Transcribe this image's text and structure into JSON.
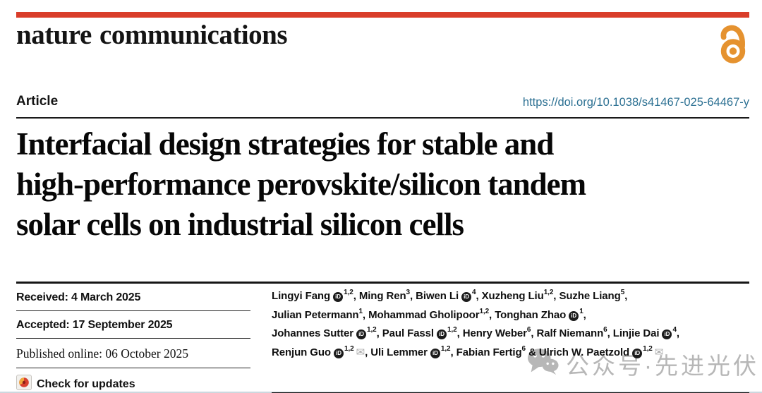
{
  "journal": {
    "name": "nature communications",
    "colors": {
      "accent_red": "#d93d2a",
      "open_access_orange": "#e5922f",
      "doi_link_blue": "#2d7193",
      "watermark_gray": "#b7b7b7"
    }
  },
  "article": {
    "type_label": "Article",
    "doi_url": "https://doi.org/10.1038/s41467-025-64467-y",
    "title_lines": [
      "Interfacial design strategies for stable and",
      "high-performance perovskite/silicon tandem",
      "solar cells on industrial silicon cells"
    ]
  },
  "timeline": {
    "rows": [
      {
        "text": "Received: 4 March 2025",
        "variant": "bold"
      },
      {
        "text": "Accepted: 17 September 2025",
        "variant": "bold"
      },
      {
        "text": "Published online: 06 October 2025",
        "variant": "serif"
      }
    ],
    "check_for_updates_label": "Check for updates"
  },
  "authors": {
    "lines": [
      [
        {
          "name": "Lingyi Fang",
          "orcid": true,
          "sup": "1,2",
          "after": ", "
        },
        {
          "name": "Ming Ren",
          "orcid": false,
          "sup": "3",
          "after": ", "
        },
        {
          "name": "Biwen Li",
          "orcid": true,
          "sup": "4",
          "after": ", "
        },
        {
          "name": "Xuzheng Liu",
          "orcid": false,
          "sup": "1,2",
          "after": ", "
        },
        {
          "name": "Suzhe Liang",
          "orcid": false,
          "sup": "5",
          "after": ","
        }
      ],
      [
        {
          "name": "Julian Petermann",
          "orcid": false,
          "sup": "1",
          "after": ", "
        },
        {
          "name": "Mohammad Gholipoor",
          "orcid": false,
          "sup": "1,2",
          "after": ", "
        },
        {
          "name": "Tonghan Zhao",
          "orcid": true,
          "sup": "1",
          "after": ","
        }
      ],
      [
        {
          "name": "Johannes Sutter",
          "orcid": true,
          "sup": "1,2",
          "after": ", "
        },
        {
          "name": "Paul Fassl",
          "orcid": true,
          "sup": "1,2",
          "after": ", "
        },
        {
          "name": "Henry Weber",
          "orcid": false,
          "sup": "6",
          "after": ", "
        },
        {
          "name": "Ralf Niemann",
          "orcid": false,
          "sup": "6",
          "after": ", "
        },
        {
          "name": "Linjie Dai",
          "orcid": true,
          "sup": "4",
          "after": ","
        }
      ],
      [
        {
          "name": "Renjun Guo",
          "orcid": true,
          "sup": "1,2",
          "mail": true,
          "after": ", "
        },
        {
          "name": "Uli Lemmer",
          "orcid": true,
          "sup": "1,2",
          "after": ", "
        },
        {
          "name": "Fabian Fertig",
          "orcid": false,
          "sup": "6",
          "after": " & "
        },
        {
          "name": "Ulrich W. Paetzold",
          "orcid": true,
          "sup": "1,2",
          "mail": true,
          "after": ""
        }
      ]
    ]
  },
  "watermark": {
    "platform": "wechat",
    "text": "公众号·先进光伏"
  }
}
